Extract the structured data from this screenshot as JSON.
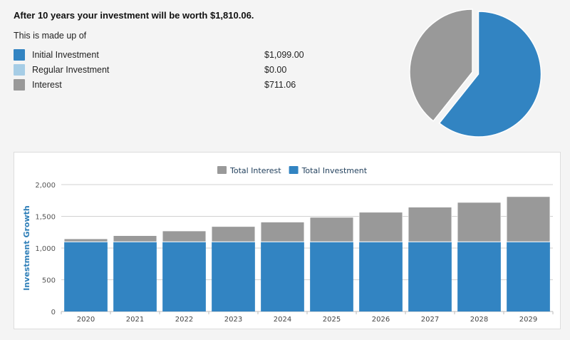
{
  "summary": {
    "headline": "After 10 years your investment will be worth $1,810.06.",
    "subtitle": "This is made up of",
    "items": [
      {
        "label": "Initial Investment",
        "value": "$1,099.00",
        "color": "#3284c2"
      },
      {
        "label": "Regular Investment",
        "value": "$0.00",
        "color": "#a6cde6"
      },
      {
        "label": "Interest",
        "value": "$711.06",
        "color": "#999999"
      }
    ]
  },
  "chart_data": [
    {
      "type": "pie",
      "slices": [
        {
          "name": "Initial Investment",
          "value": 1099.0,
          "color": "#3284c2"
        },
        {
          "name": "Regular Investment",
          "value": 0.0,
          "color": "#a6cde6"
        },
        {
          "name": "Interest",
          "value": 711.06,
          "color": "#999999"
        }
      ]
    },
    {
      "type": "bar",
      "stacked": true,
      "categories": [
        "2020",
        "2021",
        "2022",
        "2023",
        "2024",
        "2025",
        "2026",
        "2027",
        "2028",
        "2029"
      ],
      "series": [
        {
          "name": "Total Interest",
          "color": "#999999",
          "values": [
            46,
            96,
            170,
            240,
            310,
            385,
            465,
            545,
            620,
            711
          ]
        },
        {
          "name": "Total Investment",
          "color": "#3284c2",
          "values": [
            1099,
            1099,
            1099,
            1099,
            1099,
            1099,
            1099,
            1099,
            1099,
            1099
          ]
        }
      ],
      "ylabel": "Investment Growth",
      "ylim": [
        0,
        2000
      ],
      "yticks": [
        0,
        500,
        1000,
        1500,
        2000
      ],
      "ytick_labels": [
        "0",
        "500",
        "1,000",
        "1,500",
        "2,000"
      ],
      "legend_position": "top",
      "grid": true
    }
  ]
}
